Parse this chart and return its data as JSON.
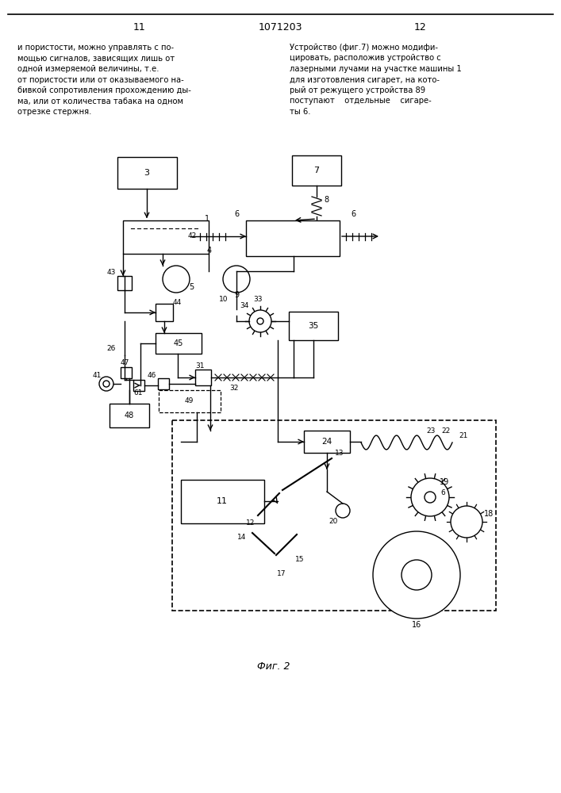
{
  "page_number_left": "11",
  "page_number_center": "1071203",
  "page_number_right": "12",
  "text_left": "и пористости, можно управлять с по-\nмощью сигналов, зависящих лишь от\nодной измеряемой величины, т.е.\nот пористости или от оказываемого на-\nбивкой сопротивления прохождению ды-\nма, или от количества табака на одном\nотрезке стержня.",
  "text_right": "Устройство (фиг.7) можно модифи-\nцировать, расположив устройство с\nлазерными лучами на участке машины 1\nдля изготовления сигарет, на кото-\nрый от режущего устройства 89\nпоступают    отдельные    сигаре-\nты 6.",
  "fig_label": "Фиг. 2",
  "background_color": "#ffffff",
  "line_color": "#000000"
}
